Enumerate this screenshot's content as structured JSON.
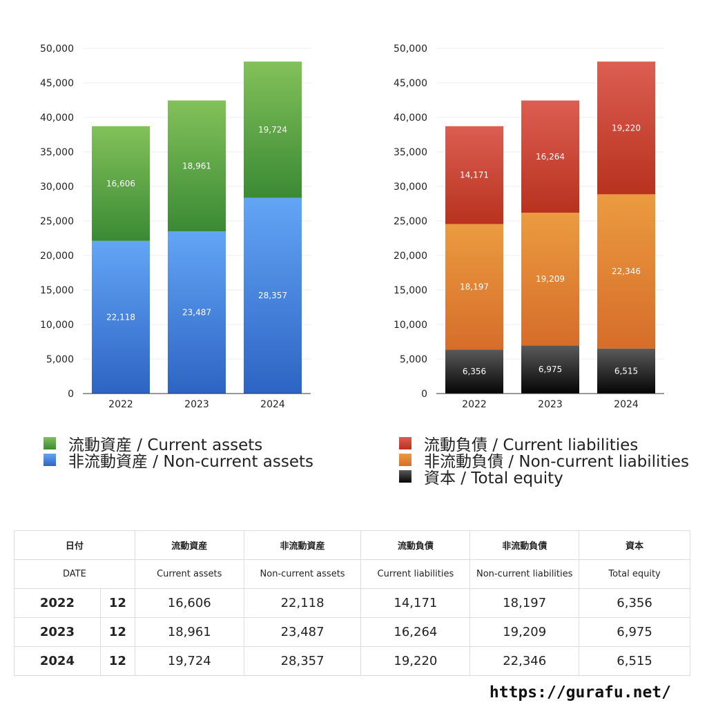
{
  "chart_data": [
    {
      "type": "bar",
      "stacked": true,
      "categories": [
        "2022",
        "2023",
        "2024"
      ],
      "series": [
        {
          "name": "非流動資産 / Non-current assets",
          "values": [
            22118,
            23487,
            28357
          ],
          "labels": [
            "22,118",
            "23,487",
            "28,357"
          ],
          "color_top": "#63a5f5",
          "color_bottom": "#2d64c4"
        },
        {
          "name": "流動資産 / Current assets",
          "values": [
            16606,
            18961,
            19724
          ],
          "labels": [
            "16,606",
            "18,961",
            "19,724"
          ],
          "color_top": "#83c15a",
          "color_bottom": "#3a8a34"
        }
      ],
      "ylim": [
        0,
        50000
      ],
      "yticks": [
        0,
        5000,
        10000,
        15000,
        20000,
        25000,
        30000,
        35000,
        40000,
        45000,
        50000
      ],
      "ytick_labels": [
        "0",
        "5,000",
        "10,000",
        "15,000",
        "20,000",
        "25,000",
        "30,000",
        "35,000",
        "40,000",
        "45,000",
        "50,000"
      ],
      "grid": true
    },
    {
      "type": "bar",
      "stacked": true,
      "categories": [
        "2022",
        "2023",
        "2024"
      ],
      "series": [
        {
          "name": "資本 / Total equity",
          "values": [
            6356,
            6975,
            6515
          ],
          "labels": [
            "6,356",
            "6,975",
            "6,515"
          ],
          "color_top": "#5a5a5a",
          "color_bottom": "#050505"
        },
        {
          "name": "非流動負債 / Non-current liabilities",
          "values": [
            18197,
            19209,
            22346
          ],
          "labels": [
            "18,197",
            "19,209",
            "22,346"
          ],
          "color_top": "#eb9b40",
          "color_bottom": "#d66d2a"
        },
        {
          "name": "流動負債 / Current liabilities",
          "values": [
            14171,
            16264,
            19220
          ],
          "labels": [
            "14,171",
            "16,264",
            "19,220"
          ],
          "color_top": "#dc5e52",
          "color_bottom": "#b8321e"
        }
      ],
      "ylim": [
        0,
        50000
      ],
      "yticks": [
        0,
        5000,
        10000,
        15000,
        20000,
        25000,
        30000,
        35000,
        40000,
        45000,
        50000
      ],
      "ytick_labels": [
        "0",
        "5,000",
        "10,000",
        "15,000",
        "20,000",
        "25,000",
        "30,000",
        "35,000",
        "40,000",
        "45,000",
        "50,000"
      ],
      "grid": true
    }
  ],
  "legend_left": [
    {
      "label": "流動資産 / Current assets",
      "color": "#4f9e3d"
    },
    {
      "label": "非流動資産 / Non-current assets",
      "color": "#3f7fdc"
    }
  ],
  "legend_right": [
    {
      "label": "流動負債 / Current liabilities",
      "color": "#cc4a3a"
    },
    {
      "label": "非流動負債 / Non-current liabilities",
      "color": "#e58a36"
    },
    {
      "label": "資本 / Total equity",
      "color": "#1e1e1e"
    }
  ],
  "table": {
    "header_jp": [
      "日付",
      "流動資産",
      "非流動資産",
      "流動負債",
      "非流動負債",
      "資本"
    ],
    "header_en": [
      "DATE",
      "Current assets",
      "Non-current assets",
      "Current liabilities",
      "Non-current liabilities",
      "Total equity"
    ],
    "rows": [
      {
        "year": "2022",
        "month": "12",
        "current_assets": "16,606",
        "non_current_assets": "22,118",
        "current_liabilities": "14,171",
        "non_current_liabilities": "18,197",
        "total_equity": "6,356"
      },
      {
        "year": "2023",
        "month": "12",
        "current_assets": "18,961",
        "non_current_assets": "23,487",
        "current_liabilities": "16,264",
        "non_current_liabilities": "19,209",
        "total_equity": "6,975"
      },
      {
        "year": "2024",
        "month": "12",
        "current_assets": "19,724",
        "non_current_assets": "28,357",
        "current_liabilities": "19,220",
        "non_current_liabilities": "22,346",
        "total_equity": "6,515"
      }
    ]
  },
  "footer": {
    "url": "https://gurafu.net/"
  }
}
